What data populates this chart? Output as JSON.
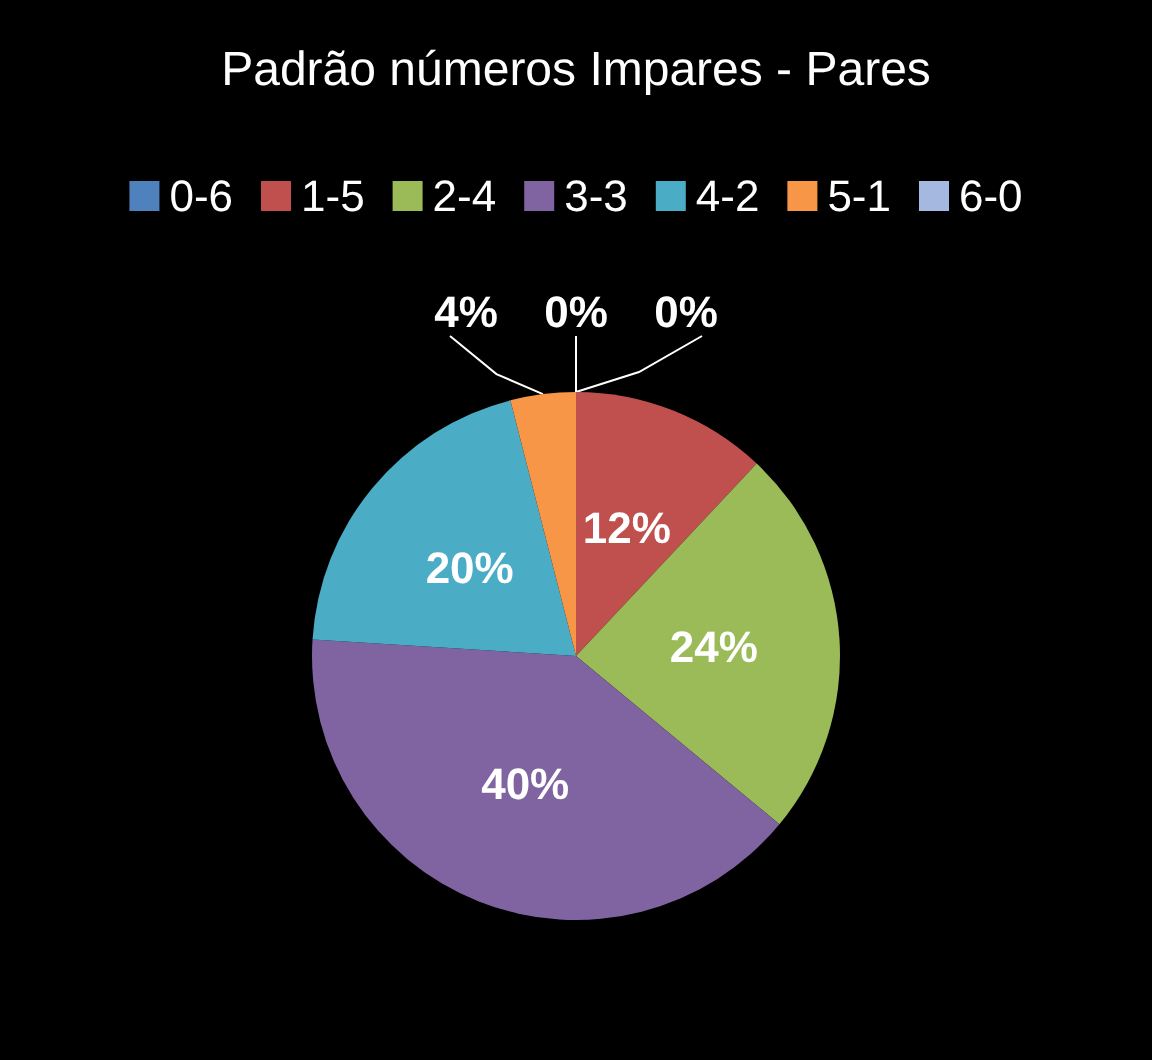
{
  "chart_data": {
    "type": "pie",
    "title": "Padrão números Impares - Pares",
    "categories": [
      "0-6",
      "1-5",
      "2-4",
      "3-3",
      "4-2",
      "5-1",
      "6-0"
    ],
    "values": [
      0,
      12,
      24,
      40,
      20,
      4,
      0
    ],
    "colors": [
      "#4f81bd",
      "#c0504d",
      "#9bbb59",
      "#8064a2",
      "#4bacc6",
      "#f79646",
      "#a5b8e0"
    ],
    "value_labels": [
      "0%",
      "12%",
      "24%",
      "40%",
      "20%",
      "4%",
      "0%"
    ],
    "legend": "top"
  }
}
